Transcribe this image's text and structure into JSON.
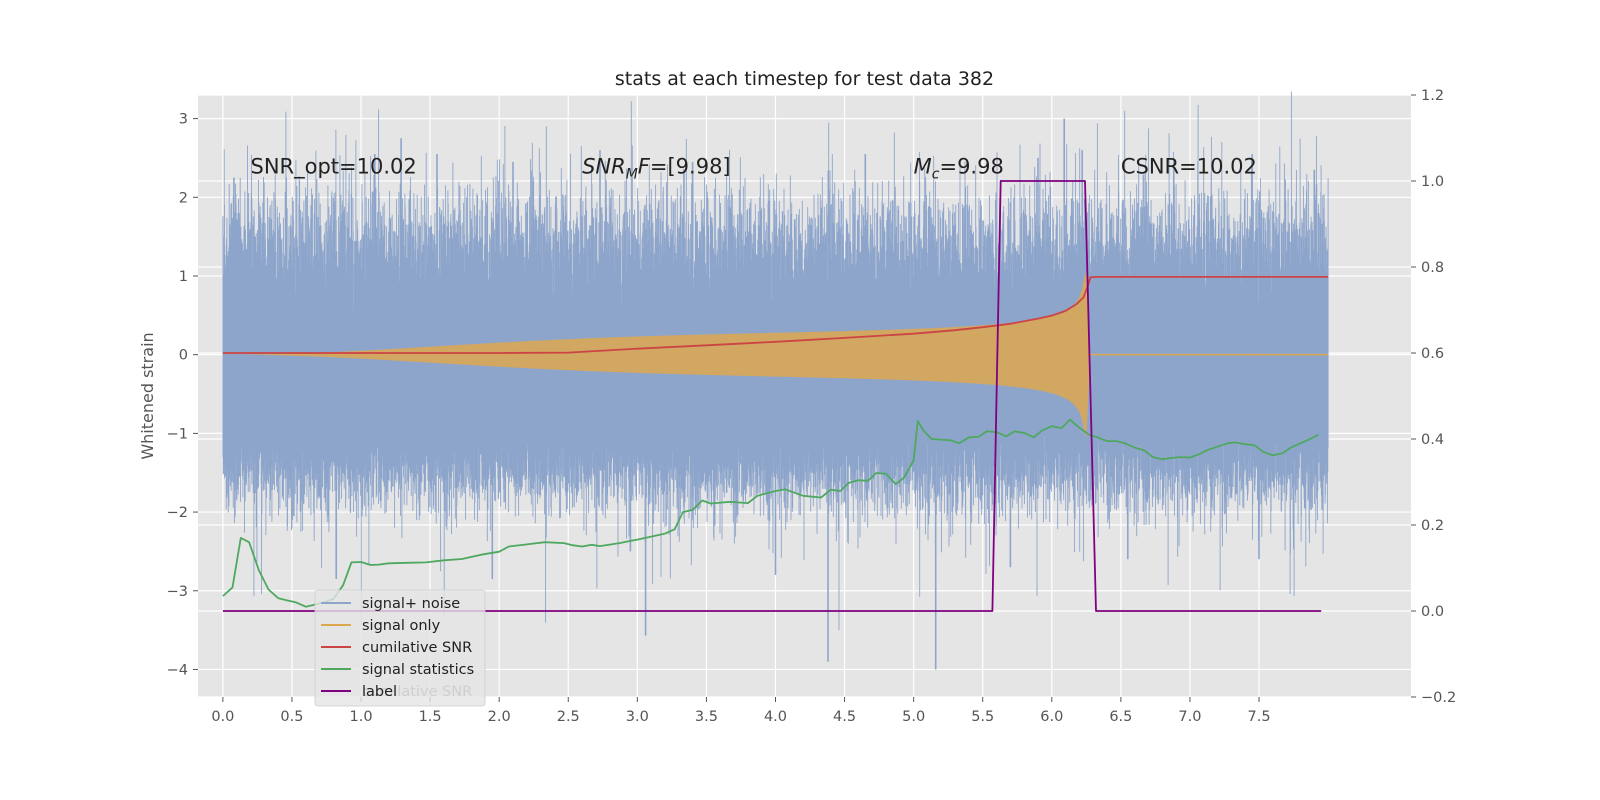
{
  "chart_data": {
    "type": "line",
    "title": "stats at each timestep for test data 382",
    "xlabel": "",
    "ylabel": "Whitened strain",
    "ylabel_right": "",
    "xlim": [
      -0.18,
      8.6
    ],
    "ylim": [
      -4.35,
      3.3
    ],
    "ylim_right": [
      -0.2,
      1.2
    ],
    "xticks": [
      "0.0",
      "0.5",
      "1.0",
      "1.5",
      "2.0",
      "2.5",
      "3.0",
      "3.5",
      "4.0",
      "4.5",
      "5.0",
      "5.5",
      "6.0",
      "6.5",
      "7.0",
      "7.5"
    ],
    "yticks_left": [
      "3",
      "2",
      "1",
      "0",
      "−1",
      "−2",
      "−3",
      "−4"
    ],
    "yticks_right": [
      "1.2",
      "1.0",
      "0.8",
      "0.6",
      "0.4",
      "0.2",
      "0.0",
      "−0.2"
    ],
    "grid": true,
    "legend_position": "lower-left",
    "series": [
      {
        "name": "signal+ noise",
        "axis": "left",
        "color": "#8ea5cb",
        "style": "noise",
        "x_range": [
          0.0,
          8.0
        ],
        "sigma": 0.92,
        "envelope_top": 1.2,
        "envelope_bottom": -1.3,
        "peaks": [
          [
            0.08,
            2.25
          ],
          [
            1.1,
            2.55
          ],
          [
            1.29,
            2.75
          ],
          [
            1.55,
            2.55
          ],
          [
            2.1,
            2.45
          ],
          [
            2.73,
            2.6
          ],
          [
            3.06,
            -3.57
          ],
          [
            3.4,
            2.45
          ],
          [
            4.38,
            -3.9
          ],
          [
            4.65,
            2.55
          ],
          [
            5.16,
            -4.0
          ],
          [
            5.9,
            2.5
          ],
          [
            6.09,
            3.0
          ],
          [
            6.22,
            2.6
          ],
          [
            7.45,
            2.55
          ],
          [
            7.9,
            2.35
          ],
          [
            0.82,
            -2.85
          ],
          [
            1.95,
            -2.85
          ],
          [
            2.95,
            -2.5
          ],
          [
            4.0,
            -2.8
          ],
          [
            5.7,
            -2.7
          ],
          [
            6.55,
            -2.6
          ],
          [
            7.5,
            -2.6
          ]
        ]
      },
      {
        "name": "signal only",
        "axis": "left",
        "color": "#dda74f",
        "style": "chirp",
        "x_range": [
          0.0,
          8.0
        ],
        "peak_time": 6.25,
        "peak_amplitude": 1.05
      },
      {
        "name": "cumilative SNR",
        "axis": "right",
        "color": "#cc4444",
        "points": [
          [
            0.0,
            0.6
          ],
          [
            0.5,
            0.6
          ],
          [
            1.0,
            0.6
          ],
          [
            1.5,
            0.6
          ],
          [
            2.0,
            0.6
          ],
          [
            2.5,
            0.601
          ],
          [
            3.0,
            0.61
          ],
          [
            3.5,
            0.618
          ],
          [
            4.0,
            0.626
          ],
          [
            4.5,
            0.635
          ],
          [
            5.0,
            0.645
          ],
          [
            5.3,
            0.653
          ],
          [
            5.5,
            0.66
          ],
          [
            5.7,
            0.668
          ],
          [
            5.9,
            0.68
          ],
          [
            6.0,
            0.687
          ],
          [
            6.1,
            0.698
          ],
          [
            6.18,
            0.714
          ],
          [
            6.23,
            0.73
          ],
          [
            6.26,
            0.755
          ],
          [
            6.28,
            0.776
          ],
          [
            6.32,
            0.777
          ],
          [
            8.0,
            0.777
          ]
        ]
      },
      {
        "name": "signal statistics",
        "axis": "right",
        "color": "#4ea860",
        "points": [
          [
            0.0,
            0.035
          ],
          [
            0.07,
            0.055
          ],
          [
            0.13,
            0.17
          ],
          [
            0.19,
            0.16
          ],
          [
            0.26,
            0.095
          ],
          [
            0.33,
            0.05
          ],
          [
            0.4,
            0.03
          ],
          [
            0.46,
            0.025
          ],
          [
            0.53,
            0.02
          ],
          [
            0.6,
            0.01
          ],
          [
            0.67,
            0.015
          ],
          [
            0.73,
            0.02
          ],
          [
            0.8,
            0.028
          ],
          [
            0.87,
            0.06
          ],
          [
            0.93,
            0.113
          ],
          [
            1.0,
            0.114
          ],
          [
            1.07,
            0.107
          ],
          [
            1.13,
            0.108
          ],
          [
            1.2,
            0.111
          ],
          [
            1.33,
            0.112
          ],
          [
            1.47,
            0.113
          ],
          [
            1.6,
            0.118
          ],
          [
            1.73,
            0.121
          ],
          [
            1.87,
            0.131
          ],
          [
            2.0,
            0.138
          ],
          [
            2.07,
            0.15
          ],
          [
            2.2,
            0.155
          ],
          [
            2.33,
            0.16
          ],
          [
            2.47,
            0.158
          ],
          [
            2.53,
            0.153
          ],
          [
            2.6,
            0.15
          ],
          [
            2.67,
            0.154
          ],
          [
            2.73,
            0.151
          ],
          [
            2.87,
            0.158
          ],
          [
            3.0,
            0.166
          ],
          [
            3.13,
            0.175
          ],
          [
            3.2,
            0.18
          ],
          [
            3.27,
            0.19
          ],
          [
            3.33,
            0.23
          ],
          [
            3.4,
            0.235
          ],
          [
            3.47,
            0.257
          ],
          [
            3.53,
            0.25
          ],
          [
            3.67,
            0.254
          ],
          [
            3.8,
            0.251
          ],
          [
            3.87,
            0.268
          ],
          [
            4.0,
            0.279
          ],
          [
            4.07,
            0.283
          ],
          [
            4.2,
            0.268
          ],
          [
            4.33,
            0.264
          ],
          [
            4.4,
            0.282
          ],
          [
            4.47,
            0.279
          ],
          [
            4.53,
            0.298
          ],
          [
            4.6,
            0.304
          ],
          [
            4.67,
            0.303
          ],
          [
            4.73,
            0.321
          ],
          [
            4.8,
            0.319
          ],
          [
            4.87,
            0.295
          ],
          [
            4.93,
            0.31
          ],
          [
            5.0,
            0.35
          ],
          [
            5.03,
            0.442
          ],
          [
            5.07,
            0.42
          ],
          [
            5.13,
            0.4
          ],
          [
            5.27,
            0.397
          ],
          [
            5.33,
            0.39
          ],
          [
            5.4,
            0.404
          ],
          [
            5.47,
            0.405
          ],
          [
            5.53,
            0.418
          ],
          [
            5.6,
            0.416
          ],
          [
            5.67,
            0.406
          ],
          [
            5.73,
            0.418
          ],
          [
            5.8,
            0.414
          ],
          [
            5.87,
            0.404
          ],
          [
            5.93,
            0.42
          ],
          [
            6.0,
            0.43
          ],
          [
            6.07,
            0.425
          ],
          [
            6.13,
            0.445
          ],
          [
            6.2,
            0.426
          ],
          [
            6.27,
            0.41
          ],
          [
            6.33,
            0.404
          ],
          [
            6.4,
            0.395
          ],
          [
            6.47,
            0.395
          ],
          [
            6.53,
            0.39
          ],
          [
            6.6,
            0.38
          ],
          [
            6.67,
            0.373
          ],
          [
            6.73,
            0.358
          ],
          [
            6.8,
            0.353
          ],
          [
            6.87,
            0.356
          ],
          [
            6.93,
            0.358
          ],
          [
            7.0,
            0.357
          ],
          [
            7.07,
            0.365
          ],
          [
            7.13,
            0.375
          ],
          [
            7.2,
            0.382
          ],
          [
            7.27,
            0.39
          ],
          [
            7.33,
            0.392
          ],
          [
            7.4,
            0.388
          ],
          [
            7.47,
            0.385
          ],
          [
            7.53,
            0.37
          ],
          [
            7.6,
            0.362
          ],
          [
            7.67,
            0.367
          ],
          [
            7.73,
            0.38
          ],
          [
            7.8,
            0.39
          ],
          [
            7.87,
            0.4
          ],
          [
            7.93,
            0.41
          ]
        ]
      },
      {
        "name": "label",
        "axis": "right",
        "color": "#800080",
        "points": [
          [
            0.0,
            0.0
          ],
          [
            5.57,
            0.0
          ],
          [
            5.63,
            1.0
          ],
          [
            6.24,
            1.0
          ],
          [
            6.32,
            0.0
          ],
          [
            7.95,
            0.0
          ]
        ]
      }
    ],
    "annotations": [
      {
        "id": "snr-opt",
        "x": 0.2,
        "y": 2.3,
        "text": "SNR_opt=10.02"
      },
      {
        "id": "snr-mf",
        "x": 2.6,
        "y": 2.3,
        "italic": "SNR",
        "sub": "M",
        "italic2": "F",
        "text": "=[9.98]"
      },
      {
        "id": "mc",
        "x": 5.0,
        "y": 2.3,
        "italic": "M",
        "sub": "c",
        "text": "=9.98"
      },
      {
        "id": "csnr",
        "x": 6.5,
        "y": 2.3,
        "text": "CSNR=10.02"
      }
    ],
    "legend_ghost_text": "cumilative SNR"
  }
}
